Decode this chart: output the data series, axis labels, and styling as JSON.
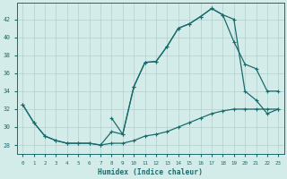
{
  "xlabel": "Humidex (Indice chaleur)",
  "bg_color": "#d4ece9",
  "grid_color": "#b2cecc",
  "line_color": "#1a6b6b",
  "xlim": [
    -0.5,
    23.5
  ],
  "ylim": [
    27.0,
    43.8
  ],
  "yticks": [
    28,
    30,
    32,
    34,
    36,
    38,
    40,
    42
  ],
  "xticks": [
    0,
    1,
    2,
    3,
    4,
    5,
    6,
    7,
    8,
    9,
    10,
    11,
    12,
    13,
    14,
    15,
    16,
    17,
    18,
    19,
    20,
    21,
    22,
    23
  ],
  "line1_x": [
    0,
    1,
    2,
    3,
    4,
    5,
    6,
    7,
    8,
    9,
    10,
    11,
    12,
    13,
    14,
    15,
    16,
    17,
    18,
    19,
    20,
    21,
    22,
    23
  ],
  "line1_y": [
    32.5,
    30.5,
    29.0,
    28.5,
    28.2,
    28.2,
    28.2,
    28.0,
    28.2,
    28.2,
    28.5,
    29.0,
    29.2,
    29.5,
    30.0,
    30.5,
    31.0,
    31.5,
    31.8,
    32.0,
    32.0,
    32.0,
    32.0,
    32.0
  ],
  "line2_x": [
    0,
    1,
    2,
    3,
    4,
    5,
    6,
    7,
    8,
    9,
    10,
    11,
    12,
    13,
    14,
    15,
    16,
    17,
    18,
    19,
    20,
    21,
    22,
    23
  ],
  "line2_y": [
    32.5,
    30.5,
    29.0,
    28.5,
    28.2,
    28.2,
    28.2,
    28.0,
    29.5,
    29.2,
    34.5,
    37.2,
    37.3,
    39.0,
    41.0,
    41.5,
    42.3,
    43.2,
    42.5,
    42.0,
    34.0,
    33.0,
    31.5,
    32.0
  ],
  "line3_x": [
    8,
    9,
    10,
    11,
    12,
    13,
    14,
    15,
    16,
    17,
    18,
    19,
    20,
    21,
    22,
    23
  ],
  "line3_y": [
    31.0,
    29.2,
    34.5,
    37.2,
    37.3,
    39.0,
    41.0,
    41.5,
    42.3,
    43.2,
    42.5,
    39.5,
    37.0,
    36.5,
    34.0,
    34.0
  ]
}
